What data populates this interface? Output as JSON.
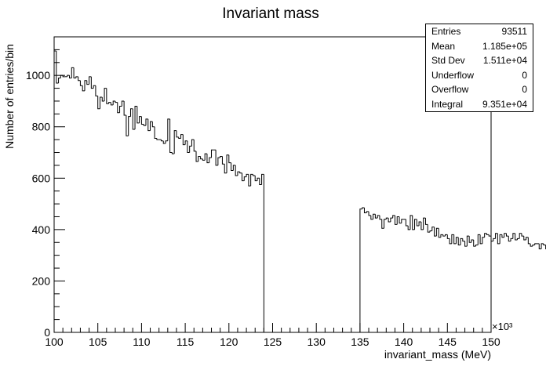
{
  "chart_data": {
    "type": "histogram",
    "title": "Invariant mass",
    "xlabel": "invariant_mass (MeV)",
    "ylabel": "Number of entries/bin",
    "x_scale_label": "×10³",
    "xlim": [
      100,
      150
    ],
    "ylim": [
      0,
      1150
    ],
    "x_ticks": [
      100,
      105,
      110,
      115,
      120,
      125,
      130,
      135,
      140,
      145,
      150
    ],
    "x_tick_labels": [
      "100",
      "105",
      "110",
      "115",
      "120",
      "125",
      "130",
      "135",
      "140",
      "145",
      "150"
    ],
    "y_ticks": [
      0,
      200,
      400,
      600,
      800,
      1000
    ],
    "y_tick_labels": [
      "0",
      "200",
      "400",
      "600",
      "800",
      "1000"
    ],
    "bin_width": 0.25,
    "bin_start": 100,
    "bin_contents": [
      1095,
      970,
      990,
      1000,
      995,
      995,
      1000,
      990,
      1030,
      990,
      995,
      980,
      960,
      940,
      980,
      965,
      995,
      950,
      960,
      920,
      870,
      915,
      900,
      950,
      890,
      895,
      885,
      900,
      895,
      855,
      880,
      900,
      845,
      765,
      840,
      870,
      790,
      880,
      815,
      840,
      810,
      805,
      830,
      785,
      820,
      800,
      755,
      750,
      750,
      745,
      735,
      745,
      830,
      700,
      695,
      785,
      760,
      755,
      770,
      730,
      745,
      700,
      725,
      750,
      705,
      665,
      685,
      675,
      670,
      695,
      660,
      680,
      710,
      710,
      650,
      680,
      685,
      655,
      620,
      690,
      660,
      630,
      650,
      610,
      625,
      620,
      590,
      605,
      615,
      570,
      615,
      610,
      590,
      600,
      575,
      615,
      0,
      0,
      0,
      0,
      0,
      0,
      0,
      0,
      0,
      0,
      0,
      0,
      0,
      0,
      0,
      0,
      0,
      0,
      0,
      0,
      0,
      0,
      0,
      0,
      0,
      0,
      0,
      0,
      0,
      0,
      0,
      0,
      0,
      0,
      0,
      0,
      0,
      0,
      0,
      0,
      0,
      0,
      0,
      0,
      480,
      485,
      465,
      470,
      455,
      440,
      460,
      445,
      455,
      440,
      405,
      440,
      445,
      430,
      445,
      455,
      420,
      450,
      425,
      440,
      440,
      415,
      400,
      455,
      400,
      440,
      415,
      430,
      400,
      445,
      420,
      390,
      395,
      410,
      375,
      405,
      370,
      380,
      375,
      380,
      365,
      345,
      380,
      345,
      370,
      340,
      365,
      355,
      335,
      375,
      350,
      360,
      335,
      340,
      380,
      345,
      370,
      385,
      380,
      375,
      355,
      365,
      385,
      345,
      380,
      370,
      385,
      375,
      355,
      365,
      385,
      360,
      365,
      385,
      375,
      360,
      370,
      345,
      335,
      340,
      345,
      345,
      325,
      345,
      340,
      325,
      335,
      315,
      325,
      325,
      330,
      340,
      300,
      325,
      310,
      275,
      325,
      305,
      315,
      300,
      375,
      275,
      325,
      295,
      295,
      305,
      310,
      295,
      250,
      310,
      300,
      310,
      280,
      325
    ]
  },
  "stats": {
    "rows": [
      {
        "key": "Entries",
        "value": "93511"
      },
      {
        "key": "Mean",
        "value": "1.185e+05"
      },
      {
        "key": "Std Dev",
        "value": "1.511e+04"
      },
      {
        "key": "Underflow",
        "value": "0"
      },
      {
        "key": "Overflow",
        "value": "0"
      },
      {
        "key": "Integral",
        "value": "9.351e+04"
      }
    ]
  }
}
